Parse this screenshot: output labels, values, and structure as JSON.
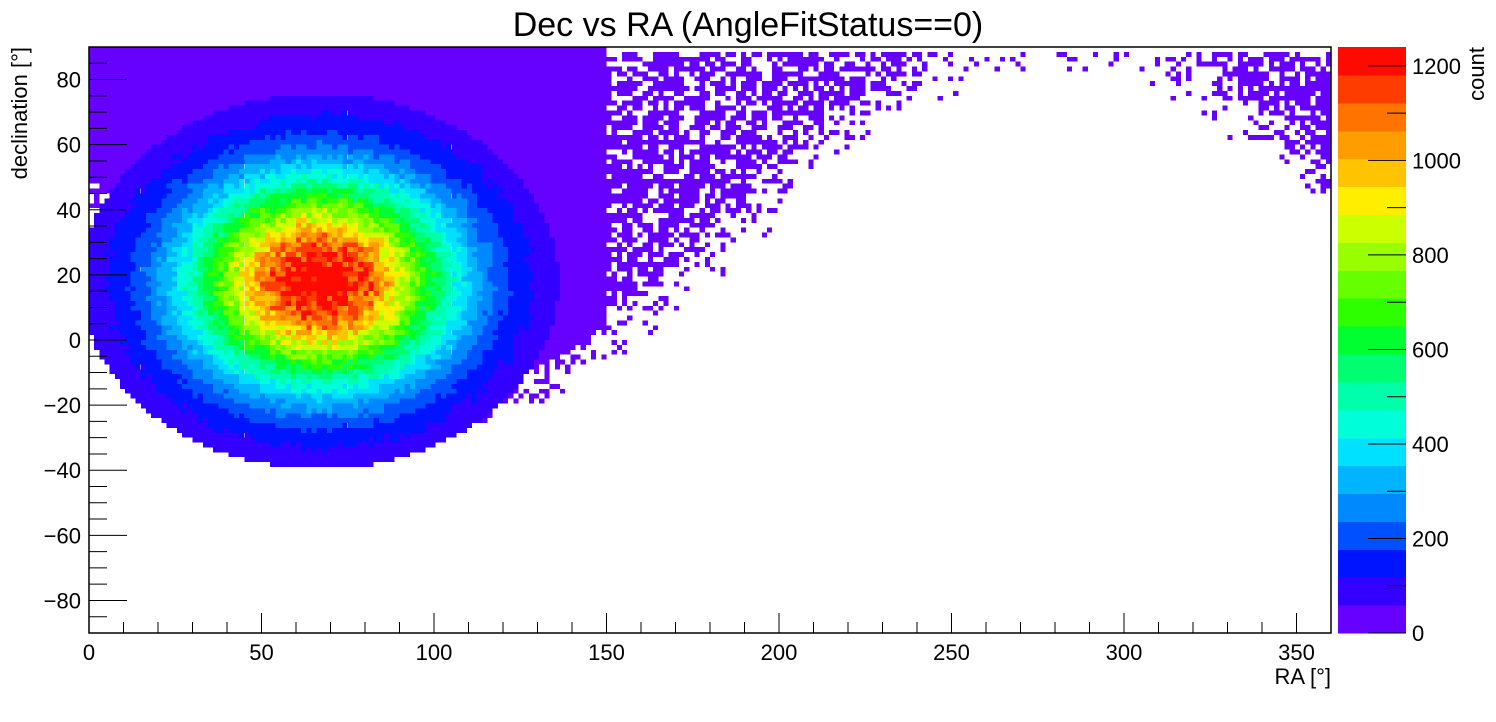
{
  "chart_data": {
    "type": "heatmap",
    "title": "Dec vs RA (AngleFitStatus==0)",
    "xlabel": "RA [°]",
    "ylabel": "declination [°]",
    "zlabel": "count",
    "xlim": [
      0,
      360
    ],
    "ylim": [
      -90,
      90
    ],
    "zlim": [
      0,
      1240
    ],
    "x_ticks": [
      0,
      50,
      100,
      150,
      200,
      250,
      300,
      350
    ],
    "y_ticks": [
      -80,
      -60,
      -40,
      -20,
      0,
      20,
      40,
      60,
      80
    ],
    "z_ticks": [
      0,
      200,
      400,
      600,
      800,
      1000,
      1200
    ],
    "bins": {
      "nx": 360,
      "ny": 180
    },
    "peak": {
      "ra": 67,
      "dec": 18,
      "count": 1240
    },
    "palette": [
      "#6600ff",
      "#3300ff",
      "#0014ff",
      "#0050ff",
      "#0088ff",
      "#00b4ff",
      "#00e0ff",
      "#00ffd8",
      "#00ffaa",
      "#00ff70",
      "#00ff2e",
      "#2eff00",
      "#66ff00",
      "#99ff00",
      "#ccff00",
      "#ffee00",
      "#ffc400",
      "#ff9c00",
      "#ff7400",
      "#ff3c00",
      "#ff0a00"
    ],
    "grid": false,
    "legend": "right color bar"
  }
}
